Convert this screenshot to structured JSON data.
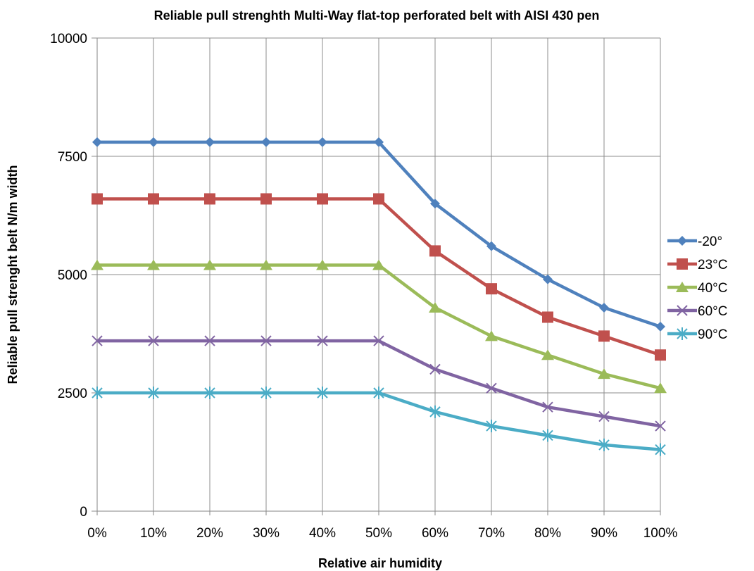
{
  "chart_data": {
    "type": "line",
    "title": "Reliable pull strenghth Multi-Way flat-top perforated belt with AISI 430 pen",
    "xlabel": "Relative air humidity",
    "ylabel": "Reliable pull strenght belt N/m width",
    "categories": [
      "0%",
      "10%",
      "20%",
      "30%",
      "40%",
      "50%",
      "60%",
      "70%",
      "80%",
      "90%",
      "100%"
    ],
    "yticks": [
      "0",
      "2500",
      "5000",
      "7500",
      "10000"
    ],
    "ylim": [
      0,
      10000
    ],
    "grid": true,
    "legend_position": "right",
    "series": [
      {
        "name": "-20°",
        "color": "#4F81BD",
        "marker": "diamond",
        "values": [
          7800,
          7800,
          7800,
          7800,
          7800,
          7800,
          6500,
          5600,
          4900,
          4300,
          3900
        ]
      },
      {
        "name": "23°C",
        "color": "#C0504D",
        "marker": "square",
        "values": [
          6600,
          6600,
          6600,
          6600,
          6600,
          6600,
          5500,
          4700,
          4100,
          3700,
          3300
        ]
      },
      {
        "name": "40°C",
        "color": "#9BBB59",
        "marker": "triangle",
        "values": [
          5200,
          5200,
          5200,
          5200,
          5200,
          5200,
          4300,
          3700,
          3300,
          2900,
          2600
        ]
      },
      {
        "name": "60°C",
        "color": "#8064A2",
        "marker": "x",
        "values": [
          3600,
          3600,
          3600,
          3600,
          3600,
          3600,
          3000,
          2600,
          2200,
          2000,
          1800
        ]
      },
      {
        "name": "90°C",
        "color": "#4BACC6",
        "marker": "asterisk",
        "values": [
          2500,
          2500,
          2500,
          2500,
          2500,
          2500,
          2100,
          1800,
          1600,
          1400,
          1300
        ]
      }
    ]
  }
}
